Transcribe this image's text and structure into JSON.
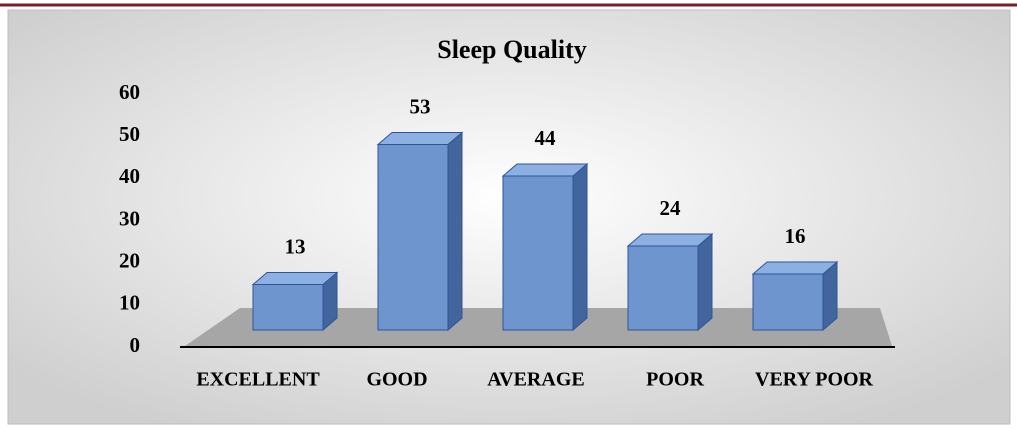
{
  "chart_data": {
    "type": "bar3d",
    "title": "Sleep Quality",
    "categories": [
      "EXCELLENT",
      "GOOD",
      "AVERAGE",
      "POOR",
      "VERY POOR"
    ],
    "values": [
      13,
      53,
      44,
      24,
      16
    ],
    "color": "#6f95cf",
    "ylim": [
      0,
      60
    ],
    "yticks": [
      0,
      10,
      20,
      30,
      40,
      50,
      60
    ],
    "grid": false
  }
}
